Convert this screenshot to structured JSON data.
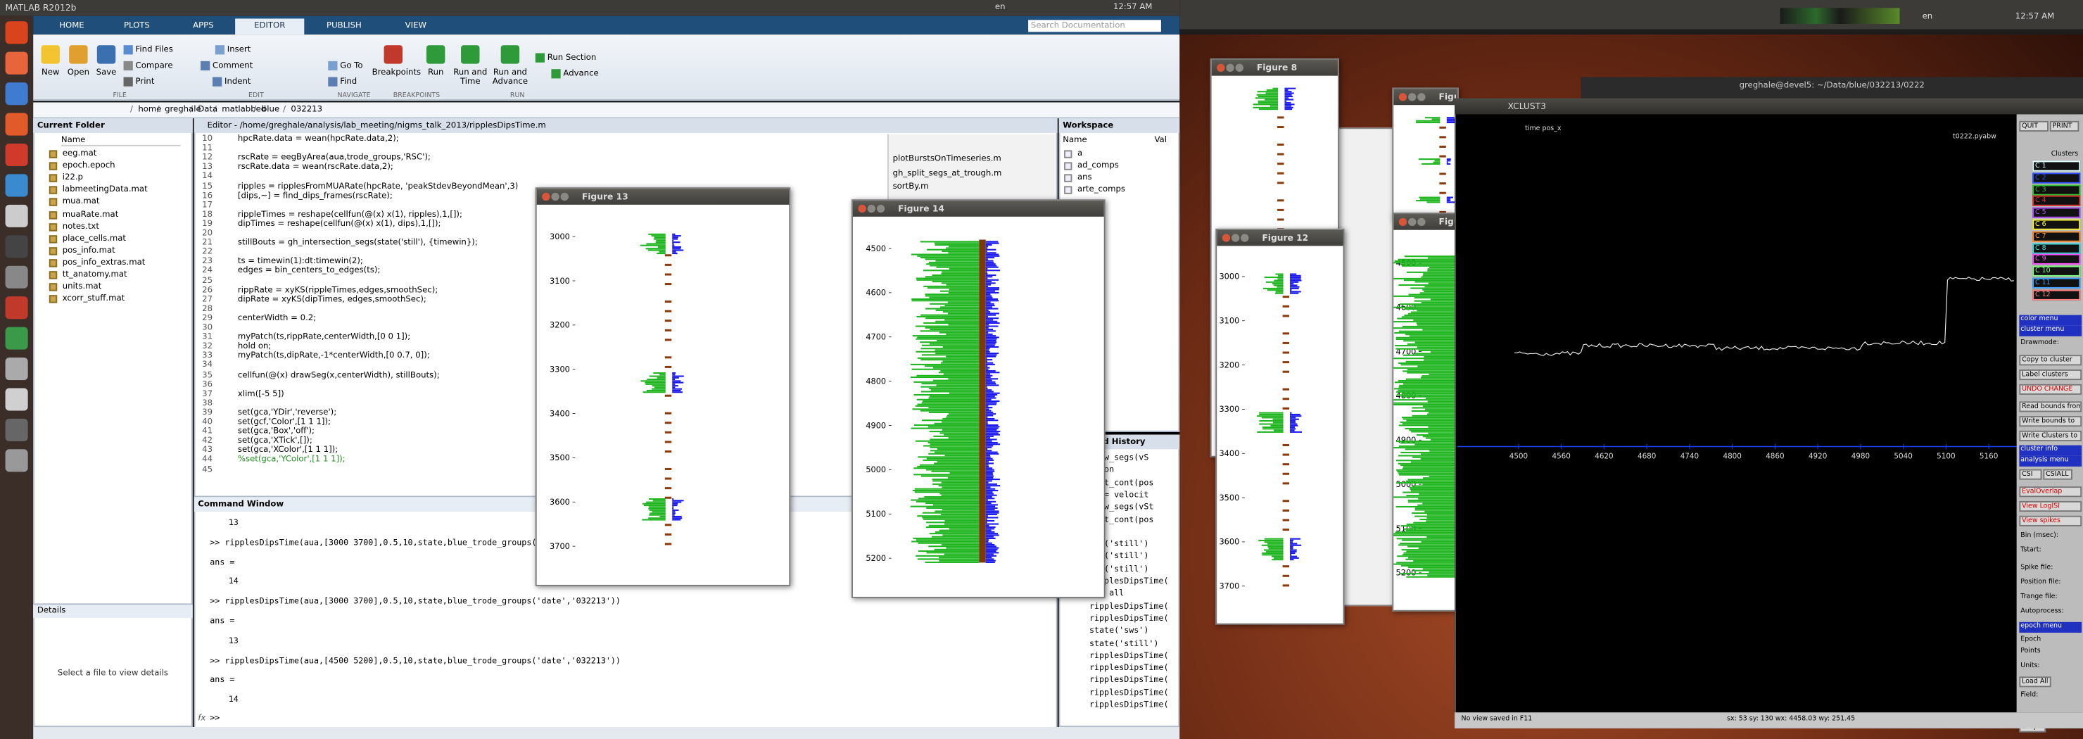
{
  "left_screen": {
    "window_title": "MATLAB R2012b",
    "language": "en",
    "clock": "12:57 AM",
    "tabs": [
      "HOME",
      "PLOTS",
      "APPS",
      "EDITOR",
      "PUBLISH",
      "VIEW"
    ],
    "search_placeholder": "Search Documentation",
    "toolbar": {
      "buttons": [
        "New",
        "Open",
        "Save",
        "Find Files",
        "Compare",
        "Print",
        "Insert",
        "Comment",
        "Indent",
        "Go To",
        "Find",
        "Breakpoints",
        "Run",
        "Run and Time",
        "Run and Advance",
        "Run Section",
        "Advance"
      ],
      "groups": [
        "FILE",
        "EDIT",
        "NAVIGATE",
        "BREAKPOINTS",
        "RUN"
      ]
    },
    "path": [
      "home",
      "greghale",
      "Data",
      "matlabbed",
      "blue",
      "032213"
    ],
    "current_folder": {
      "title": "Current Folder",
      "column": "Name",
      "files": [
        "eeg.mat",
        "epoch.epoch",
        "i22.p",
        "labmeetingData.mat",
        "mua.mat",
        "muaRate.mat",
        "notes.txt",
        "place_cells.mat",
        "pos_info.mat",
        "pos_info_extras.mat",
        "tt_anatomy.mat",
        "units.mat",
        "xcorr_stuff.mat"
      ]
    },
    "details": {
      "title": "Details",
      "message": "Select a file to view details"
    },
    "editor": {
      "title": "Editor - /home/greghale/analysis/lab_meeting/nigms_talk_2013/ripplesDipsTime.m",
      "lines": [
        {
          "n": 10,
          "code": "hpcRate.data = wean(hpcRate.data,2);"
        },
        {
          "n": 11
        },
        {
          "n": 12,
          "code": "rscRate = eegByArea(aua,trode_groups,'RSC');"
        },
        {
          "n": 13,
          "code": "rscRate.data = wean(rscRate.data,2);"
        },
        {
          "n": 14
        },
        {
          "n": 15,
          "code": "ripples = ripplesFromMUARate(hpcRate, 'peakStdevBeyondMean',3)"
        },
        {
          "n": 16,
          "code": "[dips,~] = find_dips_frames(rscRate);"
        },
        {
          "n": 17
        },
        {
          "n": 18,
          "code": "rippleTimes = reshape(cellfun(@(x) x(1), ripples),1,[]);"
        },
        {
          "n": 19,
          "code": "dipTimes    = reshape(cellfun(@(x) x(1), dips),1,[]);"
        },
        {
          "n": 20
        },
        {
          "n": 21,
          "code": "stillBouts = gh_intersection_segs(state('still'), {timewin});"
        },
        {
          "n": 22
        },
        {
          "n": 23,
          "code": "ts = timewin(1):dt:timewin(2);"
        },
        {
          "n": 24,
          "code": "edges = bin_centers_to_edges(ts);"
        },
        {
          "n": 25
        },
        {
          "n": 26,
          "code": "rippRate = xyKS(rippleTimes,edges,smoothSec);"
        },
        {
          "n": 27,
          "code": "dipRate = xyKS(dipTimes,   edges,smoothSec);"
        },
        {
          "n": 28
        },
        {
          "n": 29,
          "code": "centerWidth = 0.2;"
        },
        {
          "n": 30
        },
        {
          "n": 31,
          "code": "myPatch(ts,rippRate,centerWidth,[0 0 1]);"
        },
        {
          "n": 32,
          "code": "hold on;"
        },
        {
          "n": 33,
          "code": "myPatch(ts,dipRate,-1*centerWidth,[0 0.7, 0]);"
        },
        {
          "n": 34
        },
        {
          "n": 35,
          "code": "cellfun(@(x) drawSeg(x,centerWidth), stillBouts);"
        },
        {
          "n": 36
        },
        {
          "n": 37,
          "code": "xlim([-5 5])"
        },
        {
          "n": 38
        },
        {
          "n": 39,
          "code": "set(gca,'YDir','reverse');"
        },
        {
          "n": 40,
          "code": "set(gcf,'Color',[1 1 1]);"
        },
        {
          "n": 41,
          "code": "set(gca,'Box','off');"
        },
        {
          "n": 42,
          "code": "set(gca,'XTick',[]);"
        },
        {
          "n": 43,
          "code": "set(gca,'XColor',[1 1 1]);"
        },
        {
          "n": 44,
          "code": "%set(gca,'YColor',[1 1 1]);"
        },
        {
          "n": 45
        }
      ],
      "open_files": [
        "plotBurstsOnTimeseries.m",
        "gh_split_segs_at_trough.m",
        "sortBy.m"
      ]
    },
    "workspace": {
      "title": "Workspace",
      "columns": [
        "Name",
        "Val"
      ],
      "items": [
        "a",
        "ad_comps",
        "ans",
        "arte_comps"
      ]
    },
    "command_history": {
      "title": "Command History",
      "items": [
        "draw_segs(vS",
        "ld on",
        "plot_cont(pos",
        "te = velocit",
        "draw_segs(vSt",
        "plot_cont(pos",
        "te",
        "ate('still')",
        "ate('still')",
        "ate('still')",
        "ripplesDipsTime(",
        "ate all",
        "ripplesDipsTime(",
        "ripplesDipsTime(",
        "state('sws')",
        "state('still')",
        "ripplesDipsTime(",
        "ripplesDipsTime(",
        "ripplesDipsTime(",
        "ripplesDipsTime(",
        "ripplesDipsTime("
      ]
    },
    "command_window": {
      "title": "Command Window",
      "lines": [
        "13",
        ">> ripplesDipsTime(aua,[3000 3700],0.5,10,state,blue_trode_groups(",
        "ans =",
        "14",
        ">> ripplesDipsTime(aua,[3000 3700],0.5,10,state,blue_trode_groups('date','032213'))",
        "ans =",
        "13",
        ">> ripplesDipsTime(aua,[4500 5200],0.5,10,state,blue_trode_groups('date','032213'))",
        "ans =",
        "14"
      ],
      "prompt_icon": "fx",
      "prompt": ">>"
    }
  },
  "figures": [
    {
      "title": "Figure 8"
    },
    {
      "title": "Figure 7"
    },
    {
      "title": "Figure 13",
      "ylim": [
        2990,
        3710
      ],
      "yticks": [
        3000,
        3100,
        3200,
        3300,
        3400,
        3500,
        3600,
        3700
      ]
    },
    {
      "title": "Figure 14",
      "ylim": [
        4480,
        5210
      ],
      "yticks": [
        4500,
        4600,
        4700,
        4800,
        4900,
        5000,
        5100,
        5200
      ]
    },
    {
      "title": "Figure 12",
      "ylim": [
        2990,
        3710
      ],
      "yticks": [
        3000,
        3100,
        3200,
        3300,
        3400,
        3500,
        3600,
        3700
      ]
    },
    {
      "title": "Figure 11",
      "ylim": [
        4480,
        5210
      ],
      "yticks": [
        4500,
        4600,
        4700,
        4800,
        4900,
        5000,
        5100,
        5200
      ]
    }
  ],
  "right_screen": {
    "language": "en",
    "clock": "12:57 AM",
    "terminal_title": "greghale@devel5: ~/Data/blue/032213/0222",
    "xclust": {
      "title": "XCLUST3",
      "axis_label": "time pos_x",
      "file_label": "t0222.pyabw",
      "xlim": [
        4414,
        5199
      ],
      "xticks": [
        4500,
        4560,
        4620,
        4680,
        4740,
        4800,
        4860,
        4920,
        4980,
        5040,
        5100,
        5160
      ],
      "panel": [
        "QUIT",
        "PRINT",
        "Clusters",
        "C 1",
        "C 2",
        "C 3",
        "C 4",
        "C 5",
        "C 6",
        "C 7",
        "C 8",
        "C 9",
        "C 10",
        "C 11",
        "C 12",
        "color menu",
        "cluster menu",
        "Drawmode:",
        "Copy to cluster",
        "Label clusters",
        "UNDO CHANGE",
        "Read bounds from",
        "Write bounds to",
        "Write Clusters to",
        "cluster info",
        "analysis menu",
        "CSI",
        "CSIALL",
        "EvalOverlap",
        "View LogISI",
        "View spikes",
        "Bin (msec):",
        "Tstart:",
        "Spike file:",
        "Position file:",
        "Trange file:",
        "Autoprocess:",
        "epoch menu",
        "Epoch",
        "Points",
        "Units:",
        "Load All",
        "Field:",
        "Loop"
      ],
      "status": [
        "No view saved in F11",
        "sx: 53 sy: 130 wx: 4458.03 wy: 251.45"
      ]
    }
  }
}
